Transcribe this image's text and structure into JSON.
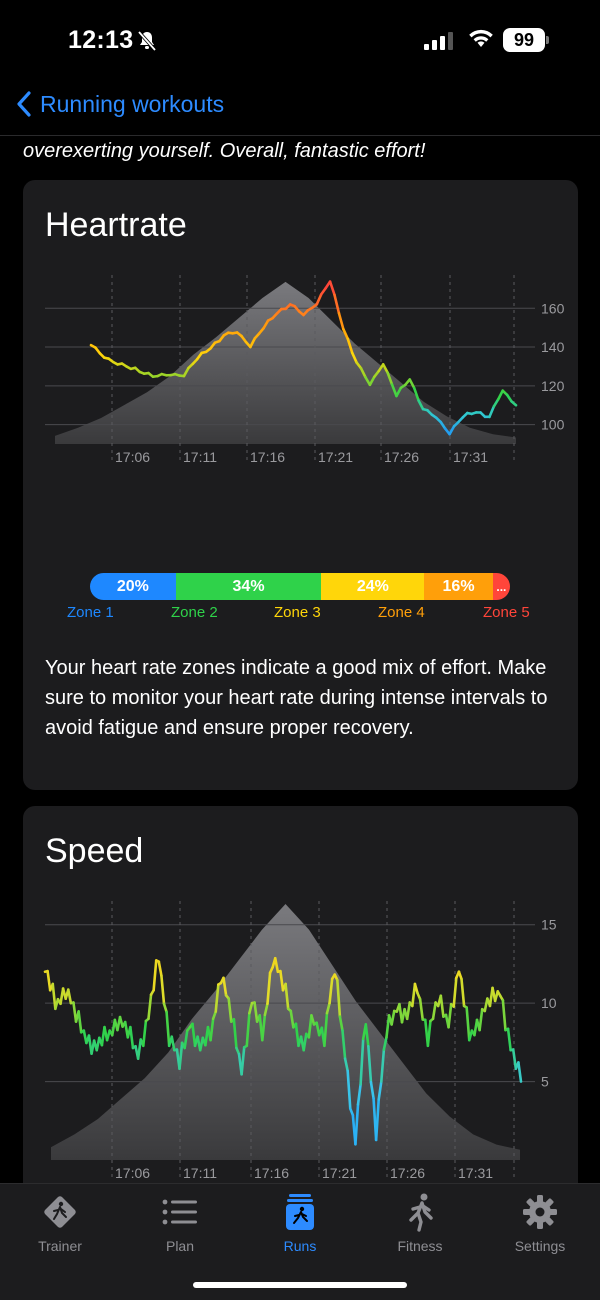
{
  "status_bar": {
    "time": "12:13",
    "battery": "99"
  },
  "nav": {
    "back_label": "Running workouts"
  },
  "summary_tail": "overexerting yourself. Overall, fantastic effort!",
  "heartrate": {
    "title": "Heartrate",
    "description": "Your heart rate zones indicate a good mix of effort. Make sure to monitor your heart rate during intense intervals to avoid fatigue and ensure proper recovery.",
    "zones": [
      {
        "name": "Zone 1",
        "percent": "20%",
        "share": 20,
        "color": "#1e88ff"
      },
      {
        "name": "Zone 2",
        "percent": "34%",
        "share": 34,
        "color": "#2fd24a"
      },
      {
        "name": "Zone 3",
        "percent": "24%",
        "share": 24,
        "color": "#ffd60a"
      },
      {
        "name": "Zone 4",
        "percent": "16%",
        "share": 16,
        "color": "#ff9f0a"
      },
      {
        "name": "Zone 5",
        "percent": "...",
        "share": 4,
        "color": "#ff453a"
      }
    ]
  },
  "speed": {
    "title": "Speed"
  },
  "chart_data": [
    {
      "type": "line",
      "title": "Heartrate",
      "x": [
        "17:02",
        "17:03",
        "17:04",
        "17:05",
        "17:06",
        "17:07",
        "17:08",
        "17:09",
        "17:10",
        "17:11",
        "17:12",
        "17:13",
        "17:14",
        "17:15",
        "17:16",
        "17:17",
        "17:18",
        "17:19",
        "17:20",
        "17:21",
        "17:22",
        "17:23",
        "17:24",
        "17:25",
        "17:26",
        "17:27",
        "17:28",
        "17:29",
        "17:30",
        "17:31",
        "17:32",
        "17:33",
        "17:34"
      ],
      "x_ticks": [
        "17:06",
        "17:11",
        "17:16",
        "17:21",
        "17:26",
        "17:31"
      ],
      "y_ticks": [
        100,
        120,
        140,
        160
      ],
      "ylim": [
        90,
        172
      ],
      "series": [
        {
          "values": [
            141,
            135,
            132,
            129,
            127,
            125,
            126,
            126,
            134,
            140,
            146,
            148,
            141,
            150,
            158,
            162,
            157,
            163,
            174,
            150,
            132,
            121,
            132,
            115,
            124,
            108,
            104,
            96,
            104,
            107,
            104,
            118,
            110
          ]
        }
      ],
      "background_area": "elevation profile"
    },
    {
      "type": "line",
      "title": "Speed",
      "x_ticks": [
        "17:06",
        "17:11",
        "17:16",
        "17:21",
        "17:26",
        "17:31"
      ],
      "y_ticks": [
        5,
        10,
        15
      ],
      "ylim": [
        0,
        16
      ],
      "series": [
        {
          "values": [
            12,
            10,
            11,
            9,
            8,
            7,
            8,
            9,
            8,
            7,
            9,
            13,
            8,
            6,
            9,
            7,
            8,
            12,
            9,
            6,
            10,
            8,
            13,
            11,
            9,
            7,
            9,
            8,
            12,
            7,
            1,
            9,
            2,
            8,
            10,
            9,
            11,
            8,
            10,
            9,
            12,
            8,
            9,
            10,
            11,
            7,
            5
          ]
        }
      ],
      "background_area": "elevation profile"
    }
  ],
  "tabs": [
    {
      "label": "Trainer",
      "icon": "trainer-icon"
    },
    {
      "label": "Plan",
      "icon": "list-icon"
    },
    {
      "label": "Runs",
      "icon": "runs-icon"
    },
    {
      "label": "Fitness",
      "icon": "runner-icon"
    },
    {
      "label": "Settings",
      "icon": "gear-icon"
    }
  ],
  "colors": {
    "accent": "#2d8bff",
    "card": "#1c1c1e",
    "background": "#000000"
  }
}
